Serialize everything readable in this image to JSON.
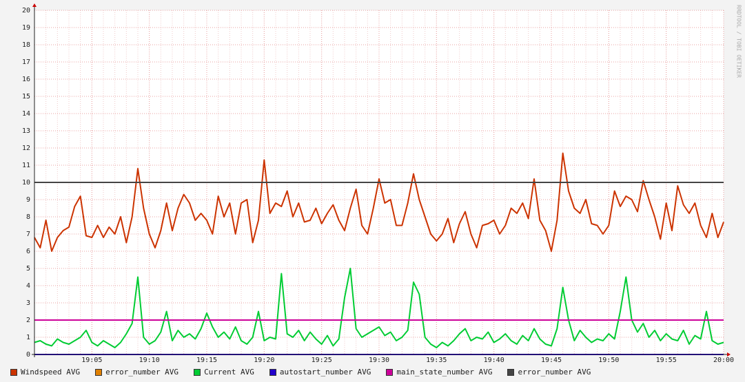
{
  "chart_data": {
    "type": "line",
    "watermark": "RRDTOOL / TOBI OETIKER",
    "xlim": [
      0,
      60
    ],
    "xticks": [
      {
        "value": 5,
        "label": "19:05"
      },
      {
        "value": 10,
        "label": "19:10"
      },
      {
        "value": 15,
        "label": "19:15"
      },
      {
        "value": 20,
        "label": "19:20"
      },
      {
        "value": 25,
        "label": "19:25"
      },
      {
        "value": 30,
        "label": "19:30"
      },
      {
        "value": 35,
        "label": "19:35"
      },
      {
        "value": 40,
        "label": "19:40"
      },
      {
        "value": 45,
        "label": "19:45"
      },
      {
        "value": 50,
        "label": "19:50"
      },
      {
        "value": 55,
        "label": "19:55"
      },
      {
        "value": 60,
        "label": "20:00"
      }
    ],
    "ylim": [
      0,
      20
    ],
    "yticks": [
      0,
      1,
      2,
      3,
      4,
      5,
      6,
      7,
      8,
      9,
      10,
      11,
      12,
      13,
      14,
      15,
      16,
      17,
      18,
      19,
      20
    ],
    "grid": true,
    "series": [
      {
        "name": "Windspeed AVG",
        "color": "#cc3300",
        "x": [
          0,
          0.5,
          1,
          1.5,
          2,
          2.5,
          3,
          3.5,
          4,
          4.5,
          5,
          5.5,
          6,
          6.5,
          7,
          7.5,
          8,
          8.5,
          9,
          9.5,
          10,
          10.5,
          11,
          11.5,
          12,
          12.5,
          13,
          13.5,
          14,
          14.5,
          15,
          15.5,
          16,
          16.5,
          17,
          17.5,
          18,
          18.5,
          19,
          19.5,
          20,
          20.5,
          21,
          21.5,
          22,
          22.5,
          23,
          23.5,
          24,
          24.5,
          25,
          25.5,
          26,
          26.5,
          27,
          27.5,
          28,
          28.5,
          29,
          29.5,
          30,
          30.5,
          31,
          31.5,
          32,
          32.5,
          33,
          33.5,
          34,
          34.5,
          35,
          35.5,
          36,
          36.5,
          37,
          37.5,
          38,
          38.5,
          39,
          39.5,
          40,
          40.5,
          41,
          41.5,
          42,
          42.5,
          43,
          43.5,
          44,
          44.5,
          45,
          45.5,
          46,
          46.5,
          47,
          47.5,
          48,
          48.5,
          49,
          49.5,
          50,
          50.5,
          51,
          51.5,
          52,
          52.5,
          53,
          53.5,
          54,
          54.5,
          55,
          55.5,
          56,
          56.5,
          57,
          57.5,
          58,
          58.5,
          59,
          59.5,
          60
        ],
        "values": [
          6.8,
          6.2,
          7.8,
          6.0,
          6.8,
          7.2,
          7.4,
          8.6,
          9.2,
          6.9,
          6.8,
          7.5,
          6.8,
          7.4,
          7.0,
          8.0,
          6.5,
          8.0,
          10.8,
          8.5,
          7.0,
          6.2,
          7.2,
          8.8,
          7.2,
          8.5,
          9.3,
          8.8,
          7.8,
          8.2,
          7.8,
          7.0,
          9.2,
          8.0,
          8.8,
          7.0,
          8.8,
          9.0,
          6.5,
          7.8,
          11.3,
          8.2,
          8.8,
          8.6,
          9.5,
          8.0,
          8.8,
          7.7,
          7.8,
          8.5,
          7.6,
          8.2,
          8.7,
          7.8,
          7.2,
          8.5,
          9.6,
          7.5,
          7.0,
          8.5,
          10.2,
          8.8,
          9.0,
          7.5,
          7.5,
          8.8,
          10.5,
          9.0,
          8.0,
          7.0,
          6.6,
          7.0,
          7.9,
          6.5,
          7.6,
          8.3,
          7.0,
          6.2,
          7.5,
          7.6,
          7.8,
          7.0,
          7.5,
          8.5,
          8.2,
          8.8,
          7.9,
          10.2,
          7.8,
          7.2,
          6.0,
          7.8,
          11.7,
          9.5,
          8.5,
          8.2,
          9.0,
          7.6,
          7.5,
          7.0,
          7.5,
          9.5,
          8.6,
          9.2,
          9.0,
          8.3,
          10.1,
          9.0,
          8.0,
          6.7,
          8.8,
          7.2,
          9.8,
          8.7,
          8.2,
          8.8,
          7.5,
          6.8,
          8.2,
          6.8,
          7.7
        ]
      },
      {
        "name": "error_number AVG",
        "color": "#e08000",
        "x": [
          0,
          60
        ],
        "values": [
          0,
          0
        ]
      },
      {
        "name": "Current AVG",
        "color": "#00cc33",
        "x": [
          0,
          0.5,
          1,
          1.5,
          2,
          2.5,
          3,
          3.5,
          4,
          4.5,
          5,
          5.5,
          6,
          6.5,
          7,
          7.5,
          8,
          8.5,
          9,
          9.5,
          10,
          10.5,
          11,
          11.5,
          12,
          12.5,
          13,
          13.5,
          14,
          14.5,
          15,
          15.5,
          16,
          16.5,
          17,
          17.5,
          18,
          18.5,
          19,
          19.5,
          20,
          20.5,
          21,
          21.5,
          22,
          22.5,
          23,
          23.5,
          24,
          24.5,
          25,
          25.5,
          26,
          26.5,
          27,
          27.5,
          28,
          28.5,
          29,
          29.5,
          30,
          30.5,
          31,
          31.5,
          32,
          32.5,
          33,
          33.5,
          34,
          34.5,
          35,
          35.5,
          36,
          36.5,
          37,
          37.5,
          38,
          38.5,
          39,
          39.5,
          40,
          40.5,
          41,
          41.5,
          42,
          42.5,
          43,
          43.5,
          44,
          44.5,
          45,
          45.5,
          46,
          46.5,
          47,
          47.5,
          48,
          48.5,
          49,
          49.5,
          50,
          50.5,
          51,
          51.5,
          52,
          52.5,
          53,
          53.5,
          54,
          54.5,
          55,
          55.5,
          56,
          56.5,
          57,
          57.5,
          58,
          58.5,
          59,
          59.5,
          60
        ],
        "values": [
          0.7,
          0.8,
          0.6,
          0.5,
          0.9,
          0.7,
          0.6,
          0.8,
          1.0,
          1.4,
          0.7,
          0.5,
          0.8,
          0.6,
          0.4,
          0.7,
          1.2,
          1.8,
          4.5,
          1.0,
          0.6,
          0.8,
          1.3,
          2.5,
          0.8,
          1.4,
          1.0,
          1.2,
          0.9,
          1.5,
          2.4,
          1.6,
          1.0,
          1.3,
          0.9,
          1.6,
          0.8,
          0.6,
          1.0,
          2.5,
          0.8,
          1.0,
          0.9,
          4.7,
          1.2,
          1.0,
          1.4,
          0.8,
          1.3,
          0.9,
          0.6,
          1.1,
          0.5,
          0.9,
          3.3,
          5.0,
          1.5,
          1.0,
          1.2,
          1.4,
          1.6,
          1.1,
          1.3,
          0.8,
          1.0,
          1.4,
          4.2,
          3.5,
          1.0,
          0.6,
          0.4,
          0.7,
          0.5,
          0.8,
          1.2,
          1.5,
          0.8,
          1.0,
          0.9,
          1.3,
          0.7,
          0.9,
          1.2,
          0.8,
          0.6,
          1.1,
          0.8,
          1.5,
          0.9,
          0.6,
          0.5,
          1.5,
          3.9,
          2.0,
          0.8,
          1.4,
          1.0,
          0.7,
          0.9,
          0.8,
          1.2,
          0.9,
          2.5,
          4.5,
          2.0,
          1.3,
          1.8,
          1.0,
          1.4,
          0.8,
          1.2,
          0.9,
          0.8,
          1.4,
          0.6,
          1.1,
          0.9,
          2.5,
          0.8,
          0.6,
          0.7
        ]
      },
      {
        "name": "autostart_number AVG",
        "color": "#2200cc",
        "x": [
          0,
          60
        ],
        "values": [
          0,
          0
        ]
      },
      {
        "name": "main_state_number AVG",
        "color": "#cc0099",
        "x": [
          0,
          60
        ],
        "values": [
          2,
          2
        ]
      },
      {
        "name": "error_number AVG",
        "color": "#444444",
        "x": [
          0,
          60
        ],
        "values": [
          10,
          10
        ]
      }
    ]
  }
}
